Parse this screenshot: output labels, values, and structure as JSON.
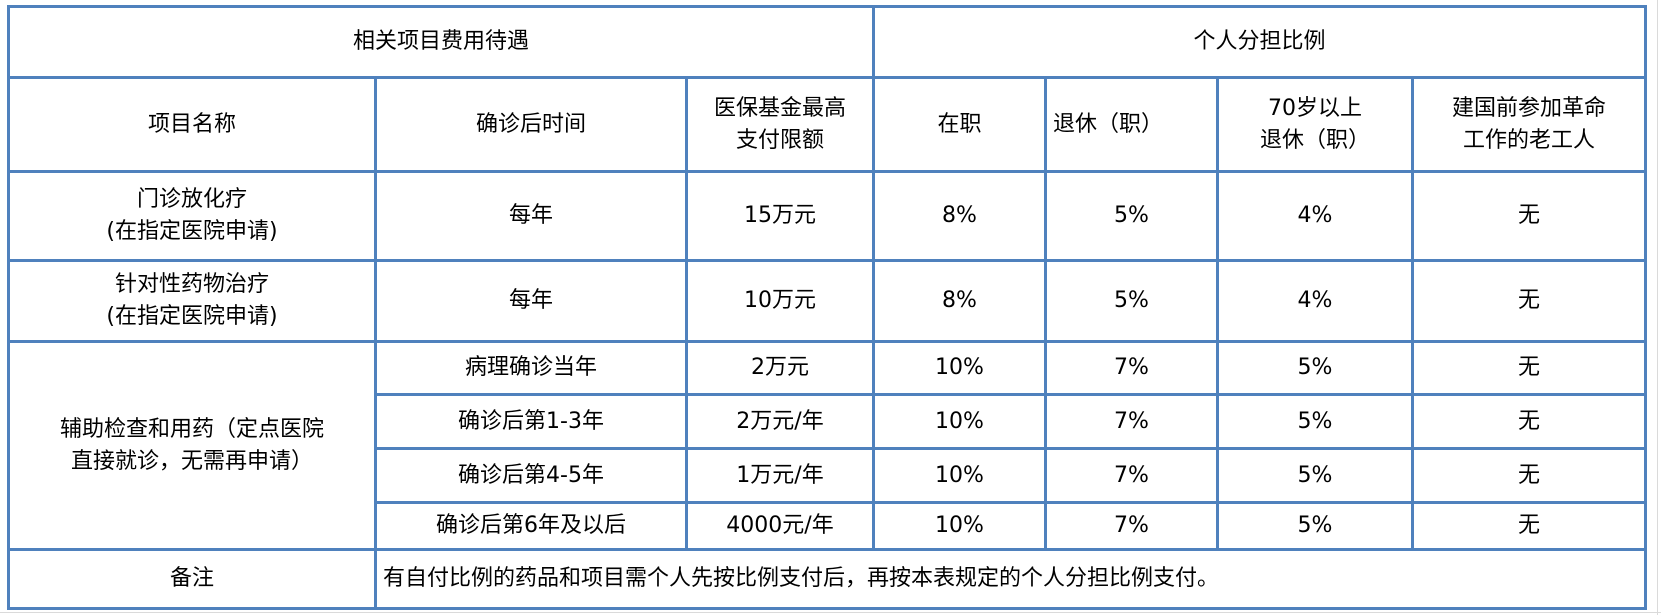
{
  "header": {
    "group_left": "相关项目费用待遇",
    "group_right": "个人分担比例",
    "columns": [
      "项目名称",
      "确诊后时间",
      "医保基金最高\n支付限额",
      "在职",
      "退休（职）",
      "70岁以上\n退休（职）",
      "建国前参加革命\n工作的老工人"
    ]
  },
  "rows": [
    {
      "name": "门诊放化疗\n(在指定医院申请)",
      "time": "每年",
      "limit": "15万元",
      "active": "8%",
      "retired": "5%",
      "retired70": "4%",
      "veteran": "无"
    },
    {
      "name": "针对性药物治疗\n(在指定医院申请)",
      "time": "每年",
      "limit": "10万元",
      "active": "8%",
      "retired": "5%",
      "retired70": "4%",
      "veteran": "无"
    }
  ],
  "group": {
    "name": "辅助检查和用药（定点医院\n直接就诊，无需再申请）",
    "rows": [
      {
        "time": "病理确诊当年",
        "limit": "2万元",
        "active": "10%",
        "retired": "7%",
        "retired70": "5%",
        "veteran": "无"
      },
      {
        "time": "确诊后第1-3年",
        "limit": "2万元/年",
        "active": "10%",
        "retired": "7%",
        "retired70": "5%",
        "veteran": "无"
      },
      {
        "time": "确诊后第4-5年",
        "limit": "1万元/年",
        "active": "10%",
        "retired": "7%",
        "retired70": "5%",
        "veteran": "无"
      },
      {
        "time": "确诊后第6年及以后",
        "limit": "4000元/年",
        "active": "10%",
        "retired": "7%",
        "retired70": "5%",
        "veteran": "无"
      }
    ]
  },
  "note": {
    "label": "备注",
    "text": "有自付比例的药品和项目需个人先按比例支付后，再按本表规定的个人分担比例支付。"
  },
  "colors": {
    "border": "#4f81bd",
    "gridline": "#dadada"
  }
}
